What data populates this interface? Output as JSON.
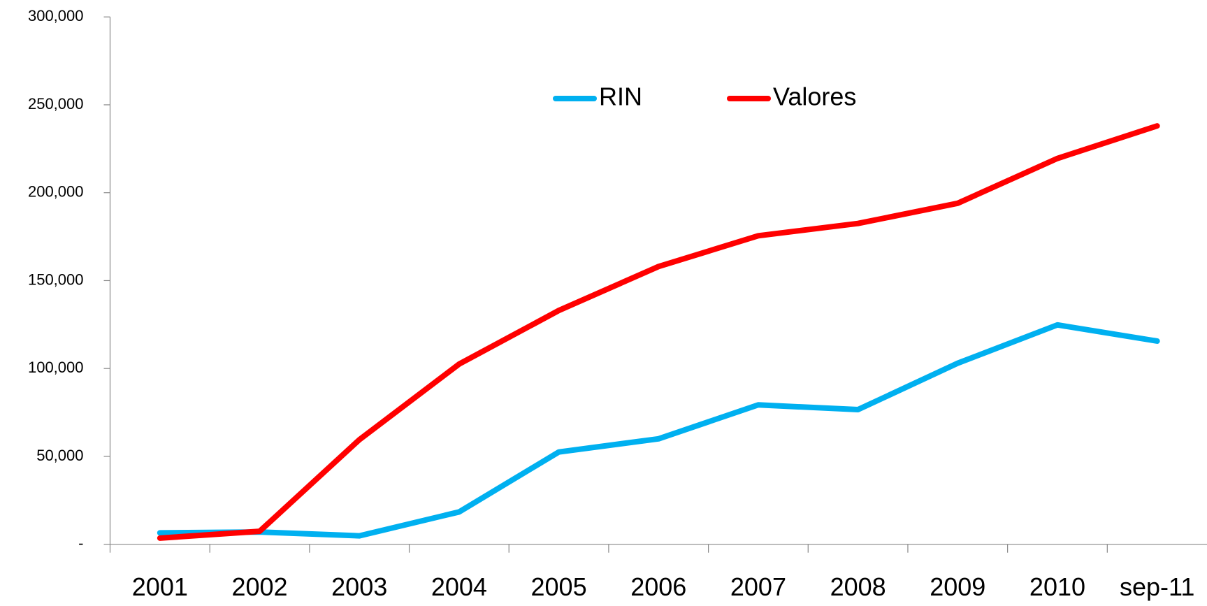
{
  "chart_data": {
    "type": "line",
    "categories": [
      "2001",
      "2002",
      "2003",
      "2004",
      "2005",
      "2006",
      "2007",
      "2008",
      "2009",
      "2010",
      "sep-11"
    ],
    "series": [
      {
        "name": "RIN",
        "color": "#00b0f0",
        "values": [
          6500,
          7000,
          4800,
          18400,
          52500,
          60000,
          79300,
          76600,
          103000,
          124800,
          115600
        ]
      },
      {
        "name": "Valores",
        "color": "#ff0000",
        "values": [
          3500,
          7400,
          59500,
          102500,
          133000,
          158000,
          175500,
          182500,
          194000,
          219500,
          238000
        ]
      }
    ],
    "ylim": [
      0,
      300000
    ],
    "yticks": [
      {
        "value": 0,
        "label": "-"
      },
      {
        "value": 50000,
        "label": "50,000"
      },
      {
        "value": 100000,
        "label": "100,000"
      },
      {
        "value": 150000,
        "label": "150,000"
      },
      {
        "value": 200000,
        "label": "200,000"
      },
      {
        "value": 250000,
        "label": "250,000"
      },
      {
        "value": 300000,
        "label": "300,000"
      }
    ],
    "legend": "top",
    "grid": false
  }
}
